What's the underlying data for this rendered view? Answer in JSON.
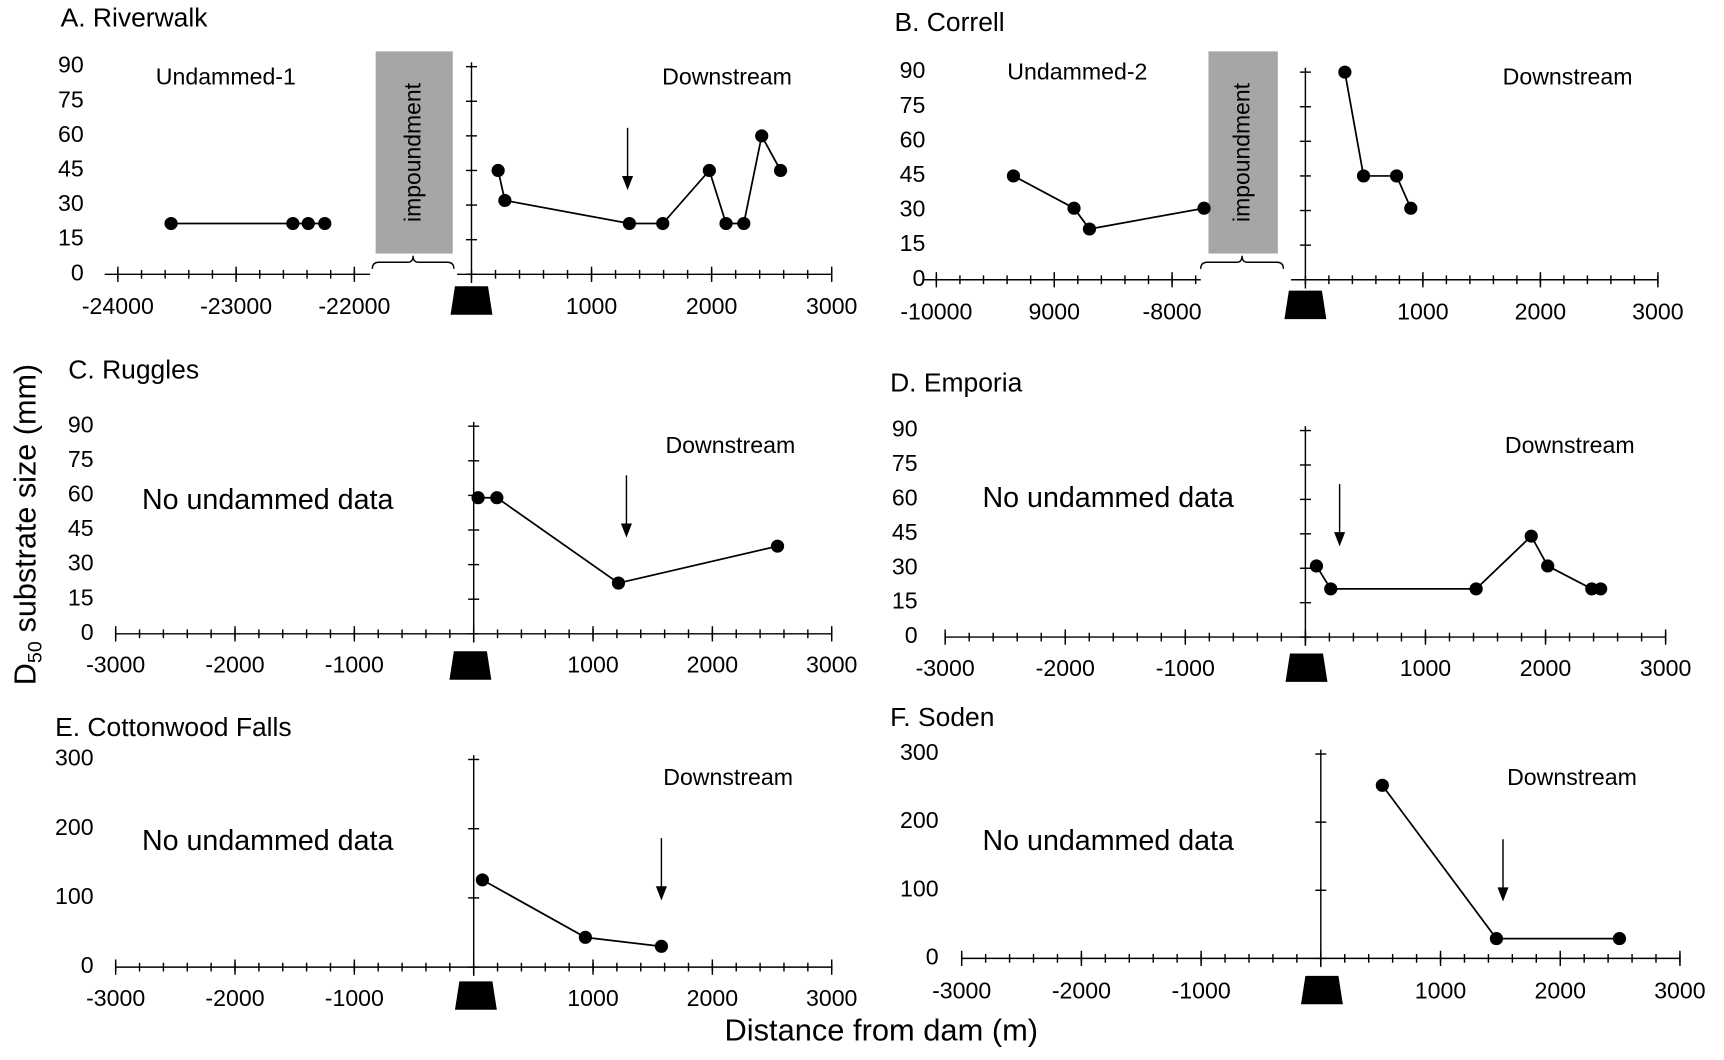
{
  "axis_labels": {
    "y": [
      "D",
      "50",
      "substrate size (mm)"
    ],
    "x": "Distance from dam (m)"
  },
  "chart_data": [
    {
      "type": "line",
      "title": "A. Riverwalk",
      "impoundment": "impoundment",
      "series": [
        {
          "name": "Undammed-1",
          "color": "#000000",
          "x": [
            -23550,
            -22520,
            -22390,
            -22250
          ],
          "values": [
            22,
            22,
            22,
            22
          ],
          "xlim": [
            -24000,
            -21000
          ],
          "xticks": [
            -24000,
            -23000,
            -22000
          ]
        },
        {
          "name": "Downstream",
          "color": "#000000",
          "x": [
            222,
            278,
            1315,
            1593,
            1981,
            2120,
            2268,
            2417,
            2574
          ],
          "values": [
            45,
            32,
            22,
            22,
            45,
            22,
            22,
            60,
            45
          ]
        }
      ],
      "xlim": [
        0,
        3000
      ],
      "xticks": [
        1000,
        2000,
        3000
      ],
      "ylim": [
        0,
        90
      ],
      "yticks": [
        0,
        15,
        30,
        45,
        60,
        75,
        90
      ],
      "arrow_x": 1300
    },
    {
      "type": "line",
      "title": "B. Correll",
      "impoundment": "impoundment",
      "series": [
        {
          "name": "Undammed-2",
          "color": "#000000",
          "x": [
            -9346,
            -8832,
            -8701,
            -7729
          ],
          "values": [
            45,
            31,
            22,
            31
          ],
          "xlim": [
            -10000,
            -7000
          ],
          "xticks": [
            -10000,
            {
              "value": -9000,
              "label": "9000"
            },
            -8000
          ]
        },
        {
          "name": "Downstream",
          "color": "#000000",
          "x": [
            336,
            495,
            776,
            897
          ],
          "values": [
            90,
            45,
            45,
            31
          ]
        }
      ],
      "xlim": [
        0,
        3000
      ],
      "xticks": [
        1000,
        2000,
        3000
      ],
      "ylim": [
        0,
        90
      ],
      "yticks": [
        0,
        15,
        30,
        45,
        60,
        75,
        90
      ]
    },
    {
      "type": "line",
      "title": "C. Ruggles",
      "note": "No undammed data",
      "series": [
        {
          "name": "Downstream",
          "color": "#000000",
          "x": [
            37,
            194,
            1213,
            2546
          ],
          "values": [
            59,
            59,
            22,
            38
          ]
        }
      ],
      "xlim": [
        -3000,
        3000
      ],
      "xticks": [
        -3000,
        -2000,
        -1000,
        0,
        1000,
        2000,
        3000
      ],
      "ylim": [
        0,
        90
      ],
      "yticks": [
        0,
        15,
        30,
        45,
        60,
        75,
        90
      ],
      "arrow_x": 1280
    },
    {
      "type": "line",
      "title": "D. Emporia",
      "note": "No undammed data",
      "series": [
        {
          "name": "Downstream",
          "color": "#000000",
          "x": [
            92,
            211,
            1422,
            1881,
            2018,
            2385,
            2459
          ],
          "values": [
            31,
            21,
            21,
            44,
            31,
            21,
            21
          ]
        }
      ],
      "xlim": [
        -3000,
        3000
      ],
      "xticks": [
        -3000,
        -2000,
        -1000,
        0,
        1000,
        2000,
        3000
      ],
      "ylim": [
        0,
        90
      ],
      "yticks": [
        0,
        15,
        30,
        45,
        60,
        75,
        90
      ],
      "arrow_x": 285
    },
    {
      "type": "line",
      "title": "E. Cottonwood Falls",
      "note": "No undammed data",
      "series": [
        {
          "name": "Downstream",
          "color": "#000000",
          "x": [
            73,
            936,
            1573
          ],
          "values": [
            126,
            43,
            30
          ]
        }
      ],
      "xlim": [
        -3000,
        3000
      ],
      "xticks": [
        -3000,
        -2000,
        -1000,
        0,
        1000,
        2000,
        3000
      ],
      "ylim": [
        0,
        300
      ],
      "yticks": [
        0,
        100,
        200,
        300
      ],
      "arrow_x": 1573
    },
    {
      "type": "line",
      "title": "F. Soden",
      "note": "No undammed data",
      "series": [
        {
          "name": "Downstream",
          "color": "#000000",
          "x": [
            514,
            1467,
            2495
          ],
          "values": [
            254,
            29,
            29
          ]
        }
      ],
      "xlim": [
        -3000,
        3000
      ],
      "xticks": [
        -3000,
        -2000,
        -1000,
        0,
        1000,
        2000,
        3000
      ],
      "ylim": [
        0,
        300
      ],
      "yticks": [
        0,
        100,
        200,
        300
      ],
      "arrow_x": 1522
    }
  ]
}
